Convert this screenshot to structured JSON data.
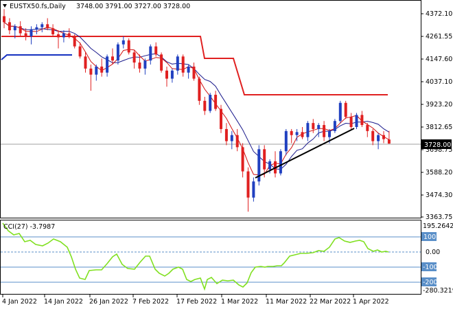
{
  "header": {
    "symbol": "EUSTX50.fs,Daily",
    "ohlc": "3748.00 3791.00 3727.00 3728.00"
  },
  "price_axis": {
    "ticks": [
      "4372.10",
      "4261.55",
      "4147.60",
      "4037.10",
      "3923.20",
      "3812.65",
      "3698.75",
      "3588.20",
      "3474.30",
      "3363.75"
    ],
    "current_label": "3728.00",
    "current_value": 3728.0
  },
  "indicator": {
    "label": "CCI(27) -3.7987",
    "max_label": "195.2642",
    "min_label": "-280.3219",
    "levels": [
      "100",
      "0.00",
      "-100",
      "-200"
    ]
  },
  "date_axis": [
    "4 Jan 2022",
    "14 Jan 2022",
    "26 Jan 2022",
    "7 Feb 2022",
    "17 Feb 2022",
    "1 Mar 2022",
    "11 Mar 2022",
    "22 Mar 2022",
    "1 Apr 2022"
  ],
  "colors": {
    "bull": "#2040c0",
    "bear": "#e02020",
    "ma_blue": "#1a1a8c",
    "ma_red": "#d01010",
    "step_red": "#e02020",
    "step_blue": "#1530c0",
    "trend": "#000000",
    "cci": "#80e020",
    "level": "#5a8fc8"
  },
  "chart_data": {
    "type": "candlestick",
    "ohlc": [
      [
        4360,
        4395,
        4300,
        4330
      ],
      [
        4330,
        4350,
        4270,
        4290
      ],
      [
        4290,
        4320,
        4250,
        4310
      ],
      [
        4310,
        4335,
        4260,
        4275
      ],
      [
        4275,
        4300,
        4240,
        4260
      ],
      [
        4260,
        4310,
        4220,
        4295
      ],
      [
        4295,
        4320,
        4270,
        4305
      ],
      [
        4305,
        4330,
        4280,
        4320
      ],
      [
        4320,
        4350,
        4290,
        4300
      ],
      [
        4300,
        4320,
        4260,
        4270
      ],
      [
        4270,
        4290,
        4200,
        4255
      ],
      [
        4255,
        4290,
        4230,
        4275
      ],
      [
        4275,
        4300,
        4250,
        4260
      ],
      [
        4260,
        4270,
        4200,
        4210
      ],
      [
        4210,
        4230,
        4150,
        4160
      ],
      [
        4160,
        4180,
        4080,
        4100
      ],
      [
        4100,
        4120,
        3990,
        4070
      ],
      [
        4070,
        4120,
        4040,
        4110
      ],
      [
        4110,
        4150,
        4060,
        4080
      ],
      [
        4080,
        4170,
        4060,
        4160
      ],
      [
        4160,
        4200,
        4120,
        4140
      ],
      [
        4140,
        4230,
        4120,
        4220
      ],
      [
        4220,
        4260,
        4200,
        4240
      ],
      [
        4240,
        4250,
        4170,
        4180
      ],
      [
        4180,
        4190,
        4100,
        4130
      ],
      [
        4130,
        4170,
        4080,
        4100
      ],
      [
        4100,
        4150,
        4070,
        4140
      ],
      [
        4140,
        4220,
        4120,
        4210
      ],
      [
        4210,
        4230,
        4160,
        4170
      ],
      [
        4170,
        4180,
        4080,
        4090
      ],
      [
        4090,
        4110,
        4010,
        4050
      ],
      [
        4050,
        4100,
        4030,
        4090
      ],
      [
        4090,
        4170,
        4070,
        4160
      ],
      [
        4160,
        4170,
        4060,
        4080
      ],
      [
        4080,
        4120,
        4050,
        4110
      ],
      [
        4110,
        4130,
        4040,
        4050
      ],
      [
        4050,
        4060,
        3920,
        3940
      ],
      [
        3940,
        3960,
        3870,
        3890
      ],
      [
        3890,
        3980,
        3880,
        3970
      ],
      [
        3970,
        3990,
        3890,
        3900
      ],
      [
        3900,
        3920,
        3780,
        3800
      ],
      [
        3800,
        3830,
        3720,
        3740
      ],
      [
        3740,
        3790,
        3700,
        3770
      ],
      [
        3770,
        3800,
        3690,
        3710
      ],
      [
        3710,
        3730,
        3560,
        3590
      ],
      [
        3590,
        3610,
        3390,
        3460
      ],
      [
        3460,
        3560,
        3440,
        3540
      ],
      [
        3540,
        3720,
        3520,
        3700
      ],
      [
        3700,
        3720,
        3560,
        3600
      ],
      [
        3600,
        3650,
        3580,
        3640
      ],
      [
        3640,
        3690,
        3560,
        3580
      ],
      [
        3580,
        3700,
        3570,
        3690
      ],
      [
        3690,
        3800,
        3670,
        3790
      ],
      [
        3790,
        3800,
        3730,
        3770
      ],
      [
        3770,
        3800,
        3740,
        3785
      ],
      [
        3785,
        3810,
        3750,
        3760
      ],
      [
        3760,
        3840,
        3740,
        3830
      ],
      [
        3830,
        3850,
        3780,
        3800
      ],
      [
        3800,
        3830,
        3760,
        3820
      ],
      [
        3820,
        3840,
        3740,
        3760
      ],
      [
        3760,
        3800,
        3730,
        3790
      ],
      [
        3790,
        3850,
        3780,
        3840
      ],
      [
        3840,
        3940,
        3830,
        3930
      ],
      [
        3930,
        3940,
        3850,
        3860
      ],
      [
        3860,
        3880,
        3800,
        3810
      ],
      [
        3810,
        3880,
        3800,
        3870
      ],
      [
        3870,
        3890,
        3810,
        3820
      ],
      [
        3820,
        3830,
        3760,
        3790
      ],
      [
        3790,
        3800,
        3720,
        3740
      ],
      [
        3740,
        3780,
        3700,
        3770
      ],
      [
        3770,
        3790,
        3730,
        3750
      ],
      [
        3748,
        3791,
        3727,
        3728
      ]
    ]
  }
}
